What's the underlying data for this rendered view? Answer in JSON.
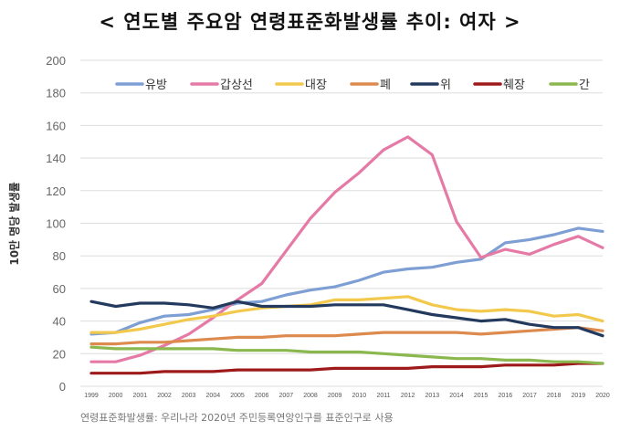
{
  "chart_data": {
    "type": "line",
    "title": "< 연도별 주요암 연령표준화발생률 추이: 여자 >",
    "ylabel": "10만 명당 발생률",
    "xlabel": "",
    "ylim": [
      0,
      200
    ],
    "yticks": [
      0,
      20,
      40,
      60,
      80,
      100,
      120,
      140,
      160,
      180,
      200
    ],
    "grid": "horizontal",
    "legend_position": "top",
    "x": [
      "1999",
      "2000",
      "2001",
      "2002",
      "2003",
      "2004",
      "2005",
      "2006",
      "2007",
      "2008",
      "2009",
      "2010",
      "2011",
      "2012",
      "2013",
      "2014",
      "2015",
      "2016",
      "2017",
      "2018",
      "2019",
      "2020"
    ],
    "series": [
      {
        "name": "유방",
        "color": "#7e9fd4",
        "values": [
          32,
          33,
          39,
          43,
          44,
          47,
          51,
          52,
          56,
          59,
          61,
          65,
          70,
          72,
          73,
          76,
          78,
          88,
          90,
          93,
          97,
          95
        ]
      },
      {
        "name": "갑상선",
        "color": "#e67aa6",
        "values": [
          15,
          15,
          19,
          25,
          32,
          42,
          53,
          63,
          83,
          103,
          119,
          131,
          145,
          153,
          142,
          101,
          79,
          84,
          81,
          87,
          92,
          85
        ]
      },
      {
        "name": "대장",
        "color": "#f2c94c",
        "values": [
          33,
          33,
          35,
          38,
          41,
          43,
          46,
          48,
          49,
          50,
          53,
          53,
          54,
          55,
          50,
          47,
          46,
          47,
          46,
          43,
          44,
          40
        ]
      },
      {
        "name": "폐",
        "color": "#dd8a4e",
        "values": [
          26,
          26,
          27,
          27,
          28,
          29,
          30,
          30,
          31,
          31,
          31,
          32,
          33,
          33,
          33,
          33,
          32,
          33,
          34,
          35,
          36,
          34
        ]
      },
      {
        "name": "위",
        "color": "#233a5e",
        "values": [
          52,
          49,
          51,
          51,
          50,
          48,
          52,
          49,
          49,
          49,
          50,
          50,
          50,
          47,
          44,
          42,
          40,
          41,
          38,
          36,
          36,
          31
        ]
      },
      {
        "name": "췌장",
        "color": "#9e1a1a",
        "values": [
          8,
          8,
          8,
          9,
          9,
          9,
          10,
          10,
          10,
          10,
          11,
          11,
          11,
          11,
          12,
          12,
          12,
          13,
          13,
          13,
          14,
          14
        ]
      },
      {
        "name": "간",
        "color": "#8ab84e",
        "values": [
          24,
          23,
          23,
          23,
          23,
          23,
          22,
          22,
          22,
          21,
          21,
          21,
          20,
          19,
          18,
          17,
          17,
          16,
          16,
          15,
          15,
          14
        ]
      }
    ],
    "source": "연령표준화발생률: 우리나라 2020년 주민등록연앙인구를 표준인구로 사용"
  }
}
